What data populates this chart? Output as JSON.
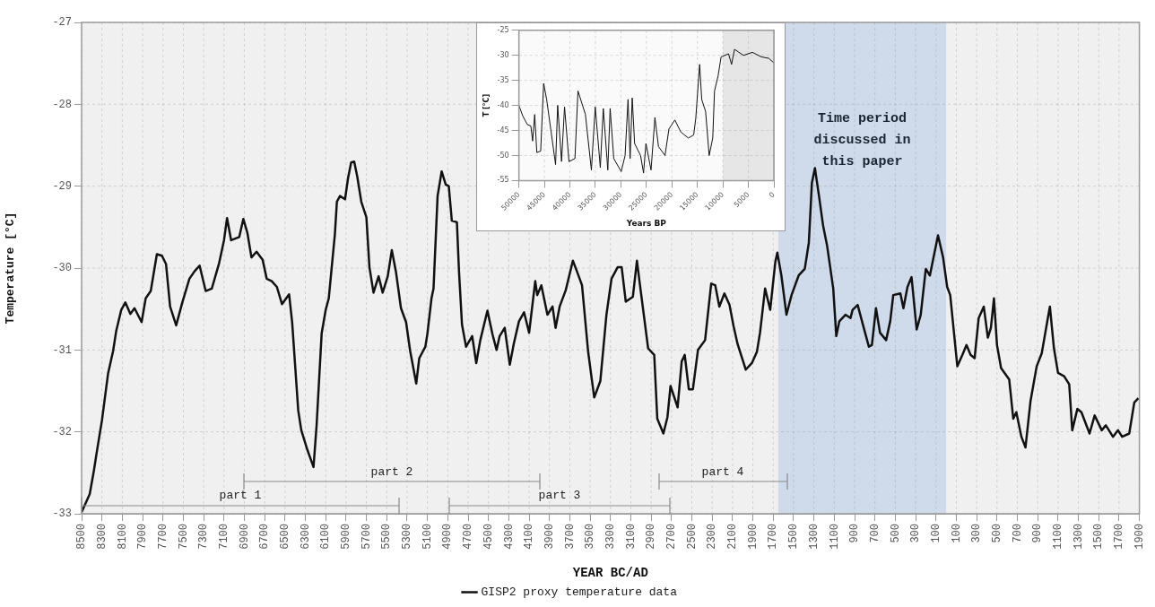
{
  "chart_data": [
    {
      "type": "line",
      "xlabel": "YEAR BC/AD",
      "ylabel": "Temperature [°C]",
      "xlim": [
        -8500,
        1900
      ],
      "ylim": [
        -33,
        -27
      ],
      "xticks": [
        {
          "value": -8500,
          "label": "8500"
        },
        {
          "value": -8300,
          "label": "8300"
        },
        {
          "value": -8100,
          "label": "8100"
        },
        {
          "value": -7900,
          "label": "7900"
        },
        {
          "value": -7700,
          "label": "7700"
        },
        {
          "value": -7500,
          "label": "7500"
        },
        {
          "value": -7300,
          "label": "7300"
        },
        {
          "value": -7100,
          "label": "7100"
        },
        {
          "value": -6900,
          "label": "6900"
        },
        {
          "value": -6700,
          "label": "6700"
        },
        {
          "value": -6500,
          "label": "6500"
        },
        {
          "value": -6300,
          "label": "6300"
        },
        {
          "value": -6100,
          "label": "6100"
        },
        {
          "value": -5900,
          "label": "5900"
        },
        {
          "value": -5700,
          "label": "5700"
        },
        {
          "value": -5500,
          "label": "5500"
        },
        {
          "value": -5300,
          "label": "5300"
        },
        {
          "value": -5100,
          "label": "5100"
        },
        {
          "value": -4900,
          "label": "4900"
        },
        {
          "value": -4700,
          "label": "4700"
        },
        {
          "value": -4500,
          "label": "4500"
        },
        {
          "value": -4300,
          "label": "4300"
        },
        {
          "value": -4100,
          "label": "4100"
        },
        {
          "value": -3900,
          "label": "3900"
        },
        {
          "value": -3700,
          "label": "3700"
        },
        {
          "value": -3500,
          "label": "3500"
        },
        {
          "value": -3300,
          "label": "3300"
        },
        {
          "value": -3100,
          "label": "3100"
        },
        {
          "value": -2900,
          "label": "2900"
        },
        {
          "value": -2700,
          "label": "2700"
        },
        {
          "value": -2500,
          "label": "2500"
        },
        {
          "value": -2300,
          "label": "2300"
        },
        {
          "value": -2100,
          "label": "2100"
        },
        {
          "value": -1900,
          "label": "1900"
        },
        {
          "value": -1700,
          "label": "1700"
        },
        {
          "value": -1500,
          "label": "1500"
        },
        {
          "value": -1300,
          "label": "1300"
        },
        {
          "value": -1100,
          "label": "1100"
        },
        {
          "value": -900,
          "label": "900"
        },
        {
          "value": -700,
          "label": "700"
        },
        {
          "value": -500,
          "label": "500"
        },
        {
          "value": -300,
          "label": "300"
        },
        {
          "value": -100,
          "label": "100"
        },
        100,
        300,
        500,
        700,
        900,
        1100,
        1300,
        1500,
        1700,
        1900
      ],
      "yticks": [
        -33,
        -32,
        -31,
        -30,
        -29,
        -28,
        -27
      ],
      "grid": true,
      "legend": "bottom",
      "annotations": [
        "part 1",
        "part 2",
        "part 3",
        "part 4"
      ],
      "bands": [
        {
          "axis": "x",
          "from": -1650,
          "to": 0,
          "label": "Time period discussed in this paper",
          "color": "#cfdbea"
        }
      ],
      "series": [
        {
          "name": "GISP2 proxy temperature data",
          "color": "#111111",
          "x": [
            -8500,
            -8420,
            -8380,
            -8350,
            -8300,
            -8240,
            -8190,
            -8160,
            -8110,
            -8070,
            -8020,
            -7980,
            -7910,
            -7870,
            -7820,
            -7760,
            -7710,
            -7670,
            -7630,
            -7570,
            -7510,
            -7440,
            -7390,
            -7340,
            -7280,
            -7220,
            -7150,
            -7100,
            -7070,
            -7030,
            -6950,
            -6910,
            -6870,
            -6830,
            -6780,
            -6720,
            -6680,
            -6630,
            -6580,
            -6530,
            -6460,
            -6430,
            -6370,
            -6340,
            -6280,
            -6220,
            -6190,
            -6140,
            -6100,
            -6070,
            -6010,
            -5990,
            -5960,
            -5910,
            -5880,
            -5850,
            -5820,
            -5790,
            -5750,
            -5700,
            -5670,
            -5630,
            -5580,
            -5540,
            -5490,
            -5450,
            -5410,
            -5360,
            -5310,
            -5270,
            -5210,
            -5180,
            -5120,
            -5100,
            -5060,
            -5040,
            -5000,
            -4960,
            -4920,
            -4890,
            -4860,
            -4810,
            -4790,
            -4760,
            -4720,
            -4660,
            -4620,
            -4580,
            -4510,
            -4460,
            -4420,
            -4390,
            -4340,
            -4290,
            -4250,
            -4200,
            -4150,
            -4100,
            -4040,
            -4020,
            -3980,
            -3920,
            -3870,
            -3840,
            -3800,
            -3740,
            -3670,
            -3630,
            -3580,
            -3520,
            -3460,
            -3400,
            -3340,
            -3290,
            -3230,
            -3190,
            -3150,
            -3080,
            -3040,
            -3010,
            -2930,
            -2870,
            -2840,
            -2780,
            -2740,
            -2710,
            -2640,
            -2600,
            -2570,
            -2530,
            -2490,
            -2440,
            -2370,
            -2310,
            -2270,
            -2230,
            -2180,
            -2130,
            -2090,
            -2050,
            -1970,
            -1910,
            -1860,
            -1830,
            -1780,
            -1730,
            -1680,
            -1660,
            -1620,
            -1570,
            -1520,
            -1450,
            -1390,
            -1350,
            -1320,
            -1290,
            -1250,
            -1210,
            -1170,
            -1110,
            -1080,
            -1050,
            -990,
            -940,
            -920,
            -870,
            -810,
            -760,
            -730,
            -690,
            -650,
            -590,
            -550,
            -520,
            -450,
            -420,
            -380,
            -340,
            -290,
            -250,
            -200,
            -160,
            -80,
            -30,
            10,
            40,
            110,
            160,
            200,
            240,
            280,
            320,
            370,
            410,
            440,
            470,
            500,
            540,
            620,
            660,
            690,
            740,
            780,
            830,
            890,
            940,
            1000,
            1020,
            1060,
            1100,
            1160,
            1210,
            1240,
            1290,
            1330,
            1410,
            1460,
            1530,
            1570,
            1640,
            1690,
            1730,
            1800,
            1850,
            1890
          ],
          "values": [
            -32.98,
            -32.76,
            -32.48,
            -32.24,
            -31.86,
            -31.29,
            -31.01,
            -30.77,
            -30.51,
            -30.42,
            -30.56,
            -30.49,
            -30.66,
            -30.37,
            -30.28,
            -29.83,
            -29.85,
            -29.95,
            -30.47,
            -30.7,
            -30.42,
            -30.13,
            -30.04,
            -29.97,
            -30.28,
            -30.25,
            -29.95,
            -29.66,
            -29.39,
            -29.66,
            -29.62,
            -29.4,
            -29.57,
            -29.87,
            -29.8,
            -29.9,
            -30.13,
            -30.16,
            -30.23,
            -30.44,
            -30.32,
            -30.66,
            -31.74,
            -31.98,
            -32.22,
            -32.43,
            -31.93,
            -30.8,
            -30.51,
            -30.37,
            -29.59,
            -29.19,
            -29.12,
            -29.16,
            -28.9,
            -28.71,
            -28.7,
            -28.88,
            -29.19,
            -29.38,
            -29.99,
            -30.3,
            -30.1,
            -30.3,
            -30.1,
            -29.78,
            -30.04,
            -30.49,
            -30.66,
            -31.01,
            -31.41,
            -31.1,
            -30.96,
            -30.8,
            -30.37,
            -30.25,
            -29.12,
            -28.82,
            -28.98,
            -29.0,
            -29.42,
            -29.44,
            -30.03,
            -30.69,
            -30.96,
            -30.83,
            -31.16,
            -30.88,
            -30.52,
            -30.81,
            -31.0,
            -30.83,
            -30.73,
            -31.18,
            -30.92,
            -30.65,
            -30.54,
            -30.79,
            -30.16,
            -30.33,
            -30.21,
            -30.57,
            -30.47,
            -30.73,
            -30.47,
            -30.27,
            -29.91,
            -30.04,
            -30.21,
            -31.02,
            -31.58,
            -31.38,
            -30.57,
            -30.13,
            -29.99,
            -29.99,
            -30.41,
            -30.35,
            -29.91,
            -30.21,
            -30.98,
            -31.06,
            -31.84,
            -32.02,
            -31.82,
            -31.44,
            -31.7,
            -31.14,
            -31.06,
            -31.48,
            -31.48,
            -31.0,
            -30.88,
            -30.19,
            -30.21,
            -30.47,
            -30.31,
            -30.45,
            -30.71,
            -30.93,
            -31.24,
            -31.16,
            -31.02,
            -30.79,
            -30.25,
            -30.51,
            -29.93,
            -29.81,
            -30.09,
            -30.57,
            -30.33,
            -30.09,
            -30.01,
            -29.69,
            -28.96,
            -28.78,
            -29.12,
            -29.48,
            -29.73,
            -30.25,
            -30.83,
            -30.65,
            -30.57,
            -30.61,
            -30.51,
            -30.45,
            -30.73,
            -30.96,
            -30.94,
            -30.49,
            -30.79,
            -30.88,
            -30.65,
            -30.33,
            -30.31,
            -30.49,
            -30.23,
            -30.11,
            -30.75,
            -30.57,
            -30.01,
            -30.09,
            -29.6,
            -29.87,
            -30.23,
            -30.33,
            -31.2,
            -31.06,
            -30.94,
            -31.06,
            -31.1,
            -30.61,
            -30.47,
            -30.85,
            -30.73,
            -30.37,
            -30.94,
            -31.22,
            -31.36,
            -31.84,
            -31.76,
            -32.06,
            -32.19,
            -31.62,
            -31.2,
            -31.04,
            -30.61,
            -30.47,
            -30.98,
            -31.28,
            -31.32,
            -31.42,
            -31.98,
            -31.72,
            -31.76,
            -32.02,
            -31.8,
            -31.98,
            -31.92,
            -32.06,
            -31.98,
            -32.06,
            -32.02,
            -31.64,
            -31.59
          ]
        }
      ]
    },
    {
      "type": "line",
      "xlabel": "Years BP",
      "ylabel": "T [°C]",
      "xlim": [
        50000,
        0
      ],
      "ylim": [
        -55,
        -25
      ],
      "xticks": [
        50000,
        45000,
        40000,
        35000,
        30000,
        25000,
        20000,
        15000,
        10000,
        5000,
        0
      ],
      "yticks": [
        -55,
        -50,
        -45,
        -40,
        -35,
        -30,
        -25
      ],
      "grid": true,
      "bands": [
        {
          "axis": "x",
          "from": 10000,
          "to": 0,
          "color": "#e6e6e6"
        }
      ],
      "series": [
        {
          "color": "#111111",
          "x": [
            50000,
            49240,
            48360,
            47660,
            47310,
            46900,
            46490,
            45730,
            45150,
            44560,
            43680,
            42810,
            42400,
            41640,
            41050,
            40180,
            39010,
            38420,
            36960,
            35790,
            35030,
            34040,
            33450,
            32570,
            32110,
            31400,
            29940,
            29180,
            28600,
            28190,
            27780,
            27310,
            26140,
            25560,
            25090,
            24090,
            23330,
            22630,
            21350,
            20580,
            19420,
            18250,
            16780,
            15730,
            15320,
            14560,
            14150,
            13390,
            12690,
            11990,
            11640,
            10940,
            10350,
            8890,
            8300,
            7720,
            5960,
            4210,
            2460,
            990,
            0
          ],
          "values": [
            -40.0,
            -42.1,
            -43.8,
            -44.1,
            -47.1,
            -41.8,
            -49.4,
            -49.1,
            -35.6,
            -38.8,
            -45.3,
            -51.8,
            -40.0,
            -51.2,
            -40.3,
            -51.2,
            -50.6,
            -37.1,
            -41.8,
            -52.9,
            -40.3,
            -52.4,
            -40.6,
            -52.9,
            -40.6,
            -50.6,
            -53.2,
            -50.0,
            -38.8,
            -50.6,
            -38.5,
            -47.6,
            -50.0,
            -53.5,
            -47.6,
            -52.9,
            -42.4,
            -48.2,
            -50.0,
            -44.7,
            -42.9,
            -45.3,
            -46.5,
            -45.9,
            -42.6,
            -31.8,
            -38.8,
            -41.2,
            -50.0,
            -46.5,
            -37.1,
            -34.1,
            -30.3,
            -29.7,
            -31.8,
            -28.8,
            -30.0,
            -29.4,
            -30.3,
            -30.6,
            -31.5
          ]
        }
      ]
    }
  ]
}
